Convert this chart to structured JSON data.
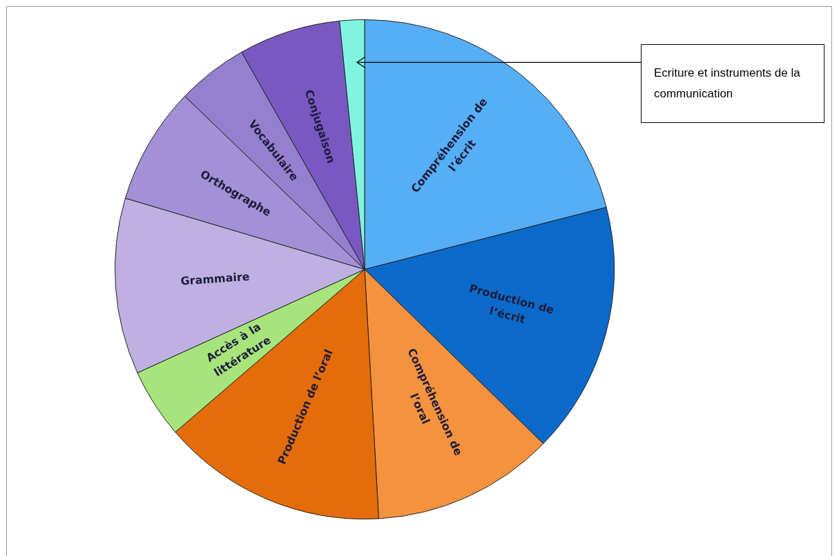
{
  "chart_data": {
    "type": "pie",
    "categories": [
      "Compréhension de l’écrit",
      "Production de l’écrit",
      "Compréhension de l’oral",
      "Production de l’oral",
      "Accès à la littérature",
      "Grammaire",
      "Orthographe",
      "Vocabulaire",
      "Conjugaison",
      "Ecriture et instruments de la communication"
    ],
    "values": [
      21.0,
      16.3,
      11.8,
      14.6,
      4.5,
      11.4,
      7.6,
      4.6,
      6.6,
      1.6
    ],
    "colors": [
      "#56aef6",
      "#0b6ac9",
      "#f5923e",
      "#e46c0a",
      "#a8e47c",
      "#bfb0e2",
      "#a291d6",
      "#9580cf",
      "#7a58c1",
      "#7ff5e0"
    ],
    "legend": false
  }
}
